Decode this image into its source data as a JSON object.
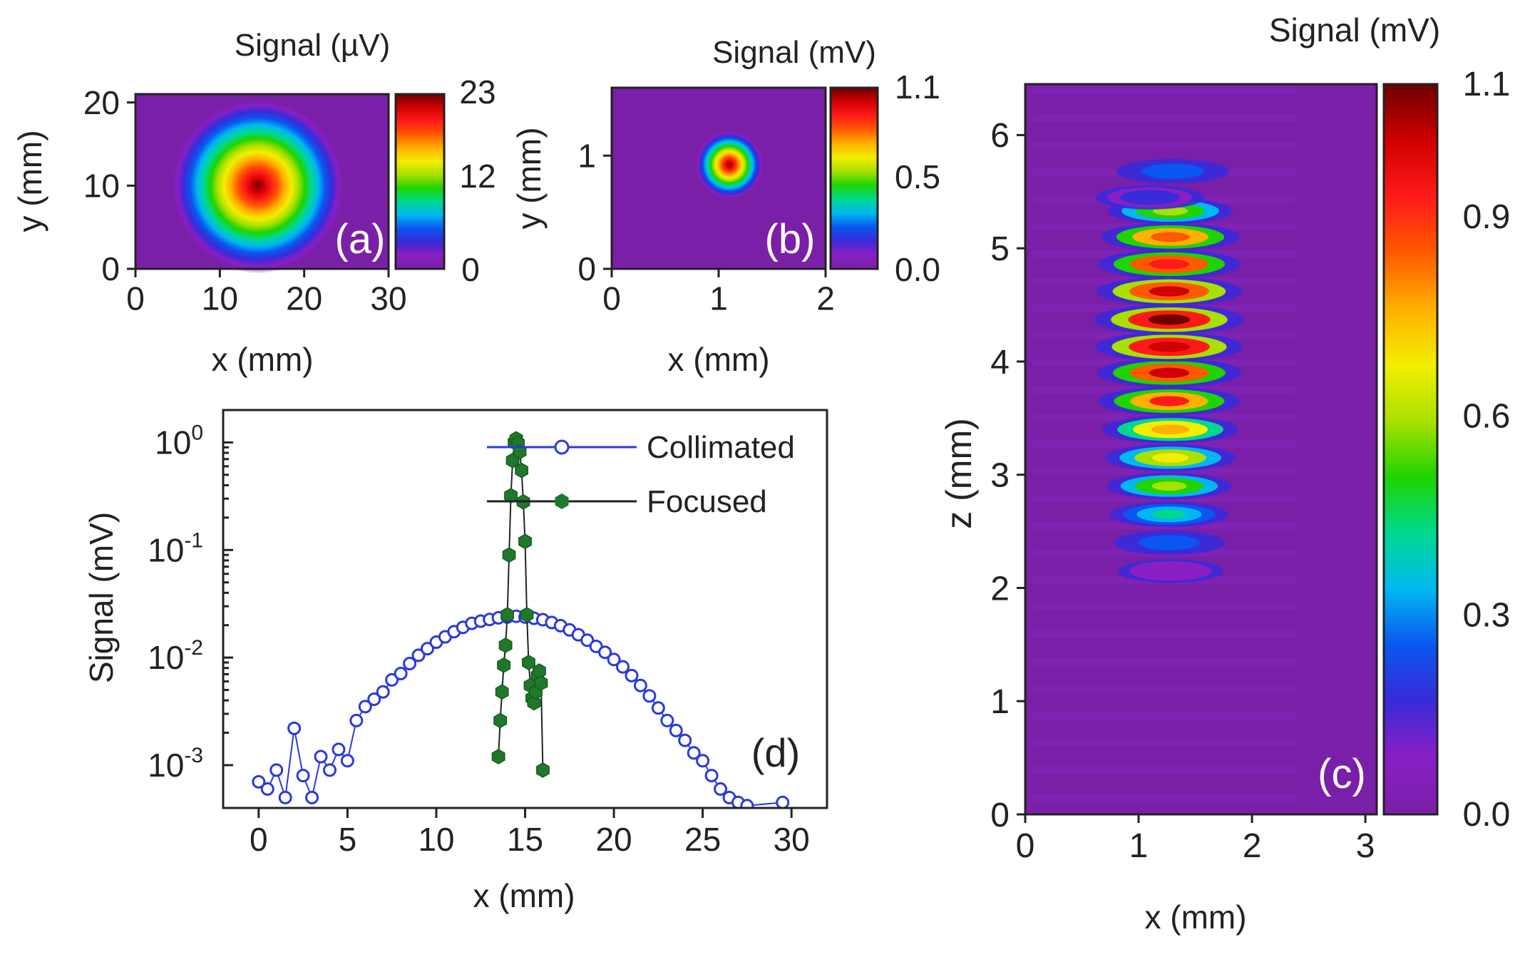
{
  "colors": {
    "rainbow": [
      "#7a1fa8",
      "#8a1fc4",
      "#3a2ad8",
      "#0a56f0",
      "#00b8f0",
      "#00d890",
      "#1ed400",
      "#a8e000",
      "#f2ee00",
      "#ffb000",
      "#ff5a00",
      "#ff1a1a",
      "#d00000",
      "#6e0000"
    ],
    "collimated": "#2a3adc",
    "focused": "#1e7a2a",
    "frame": "#222222"
  },
  "chart_data": [
    {
      "id": "a",
      "type": "heatmap",
      "panel_label": "(a)",
      "title": "Signal (µV)",
      "xlabel": "x (mm)",
      "ylabel": "y (mm)",
      "xlim": [
        0,
        30
      ],
      "ylim": [
        0,
        21
      ],
      "x_ticks": [
        "0",
        "10",
        "20",
        "30"
      ],
      "y_ticks": [
        "0",
        "10",
        "20"
      ],
      "colorbar_ticks": [
        "0",
        "12",
        "23"
      ],
      "colorbar_range": [
        0,
        23
      ],
      "spot": {
        "cx": 14.5,
        "cy": 10,
        "sigma": 5.2,
        "peak": 23
      }
    },
    {
      "id": "b",
      "type": "heatmap",
      "panel_label": "(b)",
      "title": "Signal (mV)",
      "xlabel": "x (mm)",
      "ylabel": "y (mm)",
      "xlim": [
        0,
        2
      ],
      "ylim": [
        0,
        1.6
      ],
      "x_ticks": [
        "0",
        "1",
        "2"
      ],
      "y_ticks": [
        "0",
        "1"
      ],
      "colorbar_ticks": [
        "0.0",
        "0.5",
        "1.1"
      ],
      "colorbar_range": [
        0,
        1.1
      ],
      "spot": {
        "cx": 1.1,
        "cy": 0.92,
        "sigma": 0.16,
        "peak": 1.1
      }
    },
    {
      "id": "c",
      "type": "heatmap",
      "panel_label": "(c)",
      "title": "Signal (mV)",
      "xlabel": "x (mm)",
      "ylabel": "z (mm)",
      "xlim": [
        0,
        3.1
      ],
      "ylim": [
        0,
        6.45
      ],
      "x_ticks": [
        "0",
        "1",
        "2",
        "3"
      ],
      "y_ticks": [
        "0",
        "1",
        "2",
        "3",
        "4",
        "5",
        "6"
      ],
      "colorbar_ticks": [
        "0.0",
        "0.3",
        "0.6",
        "0.9",
        "1.1"
      ],
      "colorbar_range": [
        0,
        1.1
      ],
      "lobes": [
        {
          "z": 2.15,
          "x": 1.28,
          "v": 0.12
        },
        {
          "z": 2.4,
          "x": 1.27,
          "v": 0.25
        },
        {
          "z": 2.65,
          "x": 1.27,
          "v": 0.4
        },
        {
          "z": 2.9,
          "x": 1.27,
          "v": 0.55
        },
        {
          "z": 3.15,
          "x": 1.28,
          "v": 0.68
        },
        {
          "z": 3.4,
          "x": 1.28,
          "v": 0.8
        },
        {
          "z": 3.65,
          "x": 1.27,
          "v": 0.92
        },
        {
          "z": 3.9,
          "x": 1.27,
          "v": 0.98
        },
        {
          "z": 4.13,
          "x": 1.27,
          "v": 1.05
        },
        {
          "z": 4.37,
          "x": 1.27,
          "v": 1.1
        },
        {
          "z": 4.62,
          "x": 1.27,
          "v": 1.0
        },
        {
          "z": 4.86,
          "x": 1.27,
          "v": 0.95
        },
        {
          "z": 5.1,
          "x": 1.28,
          "v": 0.85
        },
        {
          "z": 5.33,
          "x": 1.28,
          "v": 0.55
        },
        {
          "z": 5.45,
          "x": 1.1,
          "v": 0.2
        },
        {
          "z": 5.68,
          "x": 1.3,
          "v": 0.28
        }
      ]
    },
    {
      "id": "d",
      "type": "scatter",
      "panel_label": "(d)",
      "xlabel": "x (mm)",
      "ylabel": "Signal (mV)",
      "yscale": "log",
      "xlim": [
        -2,
        32
      ],
      "ylim": [
        0.0004,
        2
      ],
      "x_ticks": [
        "0",
        "5",
        "10",
        "15",
        "20",
        "25",
        "30"
      ],
      "y_ticks": [
        "10^-3",
        "10^-2",
        "10^-1",
        "10^0"
      ],
      "legend_position": "top-right",
      "series": [
        {
          "name": "Collimated",
          "marker": "open-circle",
          "x": [
            0.0,
            0.5,
            1.0,
            1.5,
            2.0,
            2.5,
            3.0,
            3.5,
            4.0,
            4.5,
            5.0,
            5.5,
            6.0,
            6.5,
            7.0,
            7.5,
            8.0,
            8.5,
            9.0,
            9.5,
            10.0,
            10.5,
            11.0,
            11.5,
            12.0,
            12.5,
            13.0,
            13.5,
            14.0,
            14.5,
            15.0,
            15.5,
            16.0,
            16.5,
            17.0,
            17.5,
            18.0,
            18.5,
            19.0,
            19.5,
            20.0,
            20.5,
            21.0,
            21.5,
            22.0,
            22.5,
            23.0,
            23.5,
            24.0,
            24.5,
            25.0,
            25.5,
            26.0,
            26.5,
            27.0,
            27.5,
            29.5
          ],
          "y": [
            0.0007,
            0.0006,
            0.0009,
            0.0005,
            0.0022,
            0.0008,
            0.0005,
            0.0012,
            0.0009,
            0.0014,
            0.0011,
            0.0026,
            0.0035,
            0.0041,
            0.0048,
            0.0062,
            0.0071,
            0.0088,
            0.0105,
            0.0121,
            0.0139,
            0.0156,
            0.0174,
            0.0191,
            0.0208,
            0.0218,
            0.0226,
            0.0234,
            0.0238,
            0.0242,
            0.0238,
            0.0232,
            0.0225,
            0.0212,
            0.0198,
            0.0181,
            0.0163,
            0.0145,
            0.0127,
            0.0112,
            0.0096,
            0.0082,
            0.0068,
            0.0055,
            0.0044,
            0.0034,
            0.0026,
            0.0021,
            0.0017,
            0.0013,
            0.0011,
            0.0008,
            0.0006,
            0.0005,
            0.00045,
            0.00042,
            0.00045
          ]
        },
        {
          "name": "Focused",
          "marker": "filled-hexagon",
          "x": [
            13.5,
            13.6,
            13.7,
            13.8,
            13.9,
            14.0,
            14.1,
            14.2,
            14.3,
            14.4,
            14.5,
            14.6,
            14.7,
            14.8,
            14.9,
            15.0,
            15.1,
            15.2,
            15.3,
            15.4,
            15.5,
            15.6,
            15.7,
            15.8,
            15.9,
            16.0
          ],
          "y": [
            0.0012,
            0.0026,
            0.0048,
            0.0085,
            0.013,
            0.025,
            0.09,
            0.32,
            0.68,
            1.0,
            1.08,
            0.98,
            0.82,
            0.55,
            0.28,
            0.12,
            0.025,
            0.009,
            0.0055,
            0.0042,
            0.0038,
            0.0048,
            0.0068,
            0.0075,
            0.0058,
            0.0009
          ]
        }
      ]
    }
  ]
}
